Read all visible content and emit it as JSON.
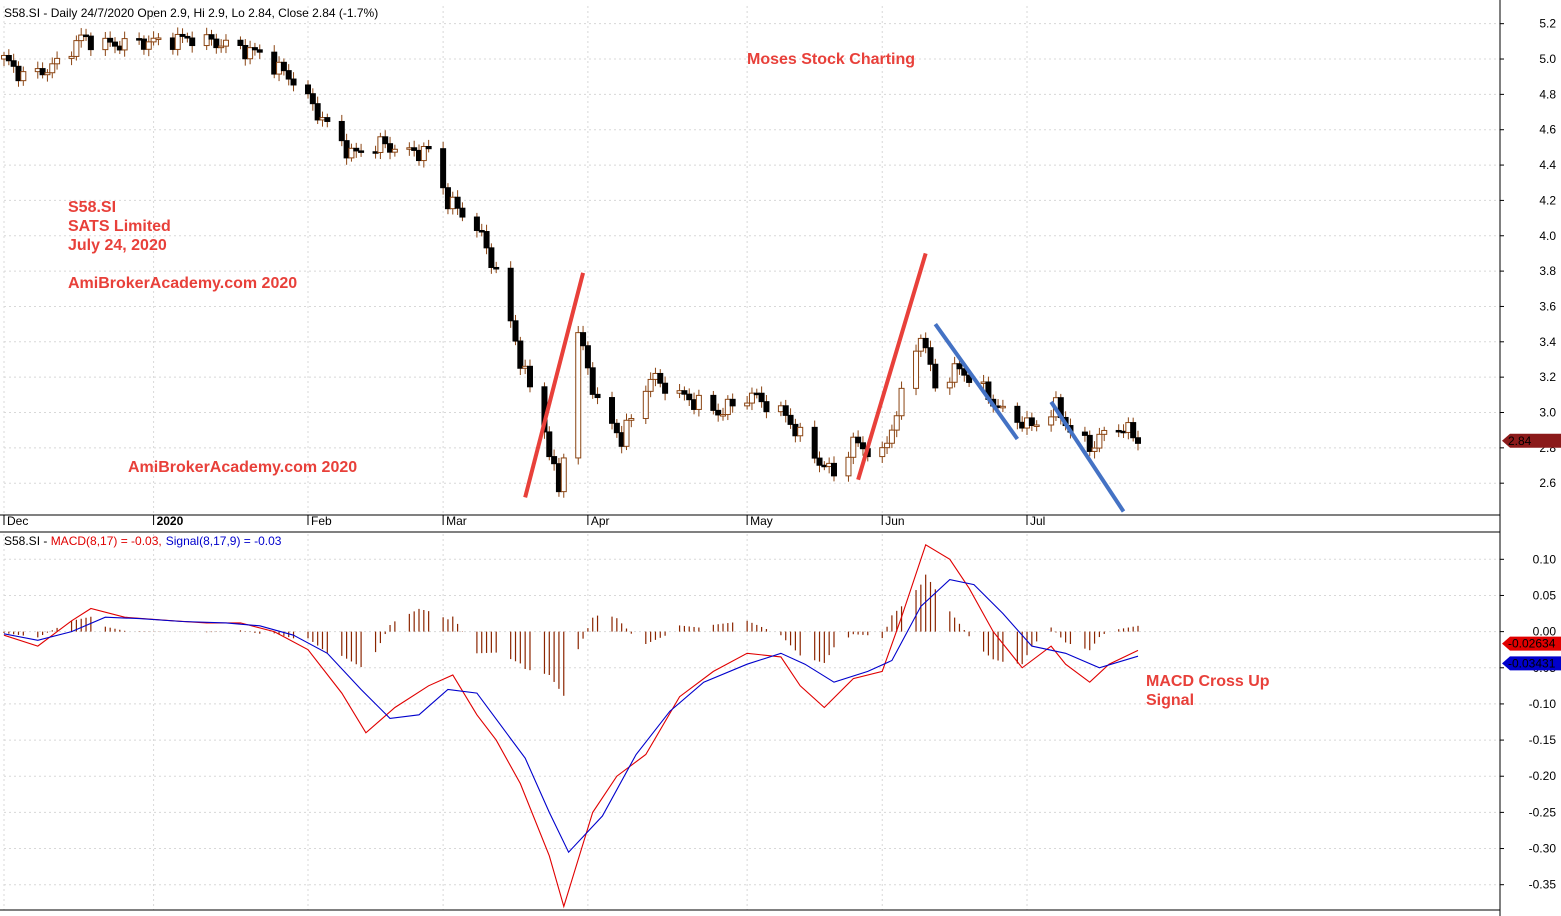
{
  "chart_data": [
    {
      "type": "candlestick",
      "symbol": "S58.SI",
      "header": "S58.SI - Daily 24/7/2020 Open 2.9, Hi 2.9, Lo 2.84, Close 2.84 (-1.7%)",
      "y_ticks": [
        2.6,
        2.8,
        3.0,
        3.2,
        3.4,
        3.6,
        3.8,
        4.0,
        4.2,
        4.4,
        4.6,
        4.8,
        5.0,
        5.2
      ],
      "ylim": [
        2.42,
        5.3
      ],
      "month_labels": [
        {
          "label": "Dec",
          "date": "2019-12-02"
        },
        {
          "label": "2020",
          "date": "2020-01-02"
        },
        {
          "label": "Feb",
          "date": "2020-02-03"
        },
        {
          "label": "Mar",
          "date": "2020-03-02"
        },
        {
          "label": "Apr",
          "date": "2020-04-01"
        },
        {
          "label": "May",
          "date": "2020-05-04"
        },
        {
          "label": "Jun",
          "date": "2020-06-01"
        },
        {
          "label": "Jul",
          "date": "2020-07-01"
        }
      ],
      "date_range": [
        "2019-12-02",
        "2020-07-24"
      ],
      "anchors": [
        {
          "date": "2019-12-02",
          "price": 5.0
        },
        {
          "date": "2019-12-06",
          "price": 4.9
        },
        {
          "date": "2019-12-12",
          "price": 4.95
        },
        {
          "date": "2019-12-18",
          "price": 5.12
        },
        {
          "date": "2019-12-24",
          "price": 5.08
        },
        {
          "date": "2020-01-03",
          "price": 5.1
        },
        {
          "date": "2020-01-10",
          "price": 5.12
        },
        {
          "date": "2020-01-17",
          "price": 5.08
        },
        {
          "date": "2020-01-24",
          "price": 5.03
        },
        {
          "date": "2020-01-31",
          "price": 4.88
        },
        {
          "date": "2020-02-06",
          "price": 4.66
        },
        {
          "date": "2020-02-12",
          "price": 4.46
        },
        {
          "date": "2020-02-18",
          "price": 4.52
        },
        {
          "date": "2020-02-24",
          "price": 4.47
        },
        {
          "date": "2020-02-28",
          "price": 4.48
        },
        {
          "date": "2020-03-03",
          "price": 4.2
        },
        {
          "date": "2020-03-09",
          "price": 4.05
        },
        {
          "date": "2020-03-13",
          "price": 3.8
        },
        {
          "date": "2020-03-18",
          "price": 3.3
        },
        {
          "date": "2020-03-23",
          "price": 2.9
        },
        {
          "date": "2020-03-26",
          "price": 2.55
        },
        {
          "date": "2020-03-30",
          "price": 3.45
        },
        {
          "date": "2020-04-03",
          "price": 3.05
        },
        {
          "date": "2020-04-08",
          "price": 2.85
        },
        {
          "date": "2020-04-14",
          "price": 3.2
        },
        {
          "date": "2020-04-20",
          "price": 3.1
        },
        {
          "date": "2020-04-28",
          "price": 3.0
        },
        {
          "date": "2020-05-05",
          "price": 3.1
        },
        {
          "date": "2020-05-12",
          "price": 2.98
        },
        {
          "date": "2020-05-18",
          "price": 2.75
        },
        {
          "date": "2020-05-22",
          "price": 2.65
        },
        {
          "date": "2020-05-26",
          "price": 2.83
        },
        {
          "date": "2020-06-01",
          "price": 2.75
        },
        {
          "date": "2020-06-04",
          "price": 3.0
        },
        {
          "date": "2020-06-09",
          "price": 3.45
        },
        {
          "date": "2020-06-12",
          "price": 3.15
        },
        {
          "date": "2020-06-17",
          "price": 3.25
        },
        {
          "date": "2020-06-22",
          "price": 3.12
        },
        {
          "date": "2020-06-26",
          "price": 3.0
        },
        {
          "date": "2020-07-02",
          "price": 2.92
        },
        {
          "date": "2020-07-07",
          "price": 3.03
        },
        {
          "date": "2020-07-10",
          "price": 2.9
        },
        {
          "date": "2020-07-14",
          "price": 2.8
        },
        {
          "date": "2020-07-17",
          "price": 2.88
        },
        {
          "date": "2020-07-21",
          "price": 2.92
        },
        {
          "date": "2020-07-24",
          "price": 2.84
        }
      ],
      "last_close_badge": "2.84",
      "trendlines": [
        {
          "color": "#e8403a",
          "from": {
            "date": "2020-03-19",
            "price": 2.52
          },
          "to": {
            "date": "2020-03-31",
            "price": 3.79
          }
        },
        {
          "color": "#e8403a",
          "from": {
            "date": "2020-05-27",
            "price": 2.62
          },
          "to": {
            "date": "2020-06-10",
            "price": 3.9
          }
        },
        {
          "color": "#4472c4",
          "from": {
            "date": "2020-06-12",
            "price": 3.5
          },
          "to": {
            "date": "2020-06-29",
            "price": 2.85
          }
        },
        {
          "color": "#4472c4",
          "from": {
            "date": "2020-07-06",
            "price": 3.06
          },
          "to": {
            "date": "2020-07-21",
            "price": 2.44
          }
        }
      ],
      "annotations": [
        {
          "text": "Moses Stock Charting",
          "color": "#e8403a"
        },
        {
          "text": "S58.SI",
          "color": "#e8403a"
        },
        {
          "text": "SATS Limited",
          "color": "#e8403a"
        },
        {
          "text": "July 24, 2020",
          "color": "#e8403a"
        },
        {
          "text": "AmiBrokerAcademy.com  2020",
          "color": "#e8403a"
        },
        {
          "text": "AmiBrokerAcademy.com  2020",
          "color": "#e8403a"
        }
      ],
      "colors": {
        "up": "#ffffff",
        "down": "#000000",
        "wick": "#8b4513",
        "up_border": "#8b4513"
      }
    },
    {
      "type": "line",
      "header_prefix": "S58.SI - ",
      "macd_label": "MACD(8,17) = -0.03,",
      "signal_label": "Signal(8,17,9) = -0.03",
      "y_ticks": [
        -0.35,
        -0.3,
        -0.25,
        -0.2,
        -0.15,
        -0.1,
        -0.05,
        0.0,
        0.05,
        0.1
      ],
      "y_tick_labels": [
        "-0.35",
        "-0.30",
        "-0.25",
        "-0.20",
        "-0.15",
        "-0.10",
        "-0.05",
        "0.00",
        "0.05",
        "0.10"
      ],
      "ylim": [
        -0.385,
        0.135
      ],
      "series": [
        {
          "name": "MACD(8,17)",
          "color": "#e00000",
          "points": [
            {
              "date": "2019-12-02",
              "value": -0.005
            },
            {
              "date": "2019-12-09",
              "value": -0.02
            },
            {
              "date": "2019-12-16",
              "value": 0.015
            },
            {
              "date": "2019-12-20",
              "value": 0.032
            },
            {
              "date": "2019-12-27",
              "value": 0.02
            },
            {
              "date": "2020-01-06",
              "value": 0.015
            },
            {
              "date": "2020-01-13",
              "value": 0.012
            },
            {
              "date": "2020-01-20",
              "value": 0.012
            },
            {
              "date": "2020-01-27",
              "value": 0.0
            },
            {
              "date": "2020-02-03",
              "value": -0.025
            },
            {
              "date": "2020-02-10",
              "value": -0.085
            },
            {
              "date": "2020-02-15",
              "value": -0.14
            },
            {
              "date": "2020-02-21",
              "value": -0.105
            },
            {
              "date": "2020-02-28",
              "value": -0.075
            },
            {
              "date": "2020-03-04",
              "value": -0.06
            },
            {
              "date": "2020-03-09",
              "value": -0.115
            },
            {
              "date": "2020-03-13",
              "value": -0.15
            },
            {
              "date": "2020-03-18",
              "value": -0.21
            },
            {
              "date": "2020-03-24",
              "value": -0.31
            },
            {
              "date": "2020-03-27",
              "value": -0.38
            },
            {
              "date": "2020-04-02",
              "value": -0.25
            },
            {
              "date": "2020-04-07",
              "value": -0.2
            },
            {
              "date": "2020-04-13",
              "value": -0.17
            },
            {
              "date": "2020-04-20",
              "value": -0.09
            },
            {
              "date": "2020-04-27",
              "value": -0.055
            },
            {
              "date": "2020-05-04",
              "value": -0.03
            },
            {
              "date": "2020-05-11",
              "value": -0.035
            },
            {
              "date": "2020-05-15",
              "value": -0.075
            },
            {
              "date": "2020-05-20",
              "value": -0.105
            },
            {
              "date": "2020-05-26",
              "value": -0.065
            },
            {
              "date": "2020-06-01",
              "value": -0.055
            },
            {
              "date": "2020-06-05",
              "value": 0.02
            },
            {
              "date": "2020-06-10",
              "value": 0.12
            },
            {
              "date": "2020-06-15",
              "value": 0.1
            },
            {
              "date": "2020-06-19",
              "value": 0.06
            },
            {
              "date": "2020-06-24",
              "value": 0.0
            },
            {
              "date": "2020-06-30",
              "value": -0.05
            },
            {
              "date": "2020-07-06",
              "value": -0.02
            },
            {
              "date": "2020-07-09",
              "value": -0.045
            },
            {
              "date": "2020-07-14",
              "value": -0.07
            },
            {
              "date": "2020-07-18",
              "value": -0.045
            },
            {
              "date": "2020-07-24",
              "value": -0.026
            }
          ]
        },
        {
          "name": "Signal(8,17,9)",
          "color": "#0000cc",
          "points": [
            {
              "date": "2019-12-02",
              "value": -0.003
            },
            {
              "date": "2019-12-09",
              "value": -0.012
            },
            {
              "date": "2019-12-16",
              "value": 0.0
            },
            {
              "date": "2019-12-23",
              "value": 0.02
            },
            {
              "date": "2019-12-30",
              "value": 0.018
            },
            {
              "date": "2020-01-08",
              "value": 0.014
            },
            {
              "date": "2020-01-17",
              "value": 0.012
            },
            {
              "date": "2020-01-24",
              "value": 0.008
            },
            {
              "date": "2020-01-31",
              "value": -0.005
            },
            {
              "date": "2020-02-07",
              "value": -0.03
            },
            {
              "date": "2020-02-14",
              "value": -0.08
            },
            {
              "date": "2020-02-20",
              "value": -0.12
            },
            {
              "date": "2020-02-26",
              "value": -0.115
            },
            {
              "date": "2020-03-03",
              "value": -0.08
            },
            {
              "date": "2020-03-09",
              "value": -0.085
            },
            {
              "date": "2020-03-14",
              "value": -0.13
            },
            {
              "date": "2020-03-19",
              "value": -0.175
            },
            {
              "date": "2020-03-24",
              "value": -0.25
            },
            {
              "date": "2020-03-28",
              "value": -0.305
            },
            {
              "date": "2020-04-04",
              "value": -0.255
            },
            {
              "date": "2020-04-11",
              "value": -0.17
            },
            {
              "date": "2020-04-18",
              "value": -0.11
            },
            {
              "date": "2020-04-25",
              "value": -0.07
            },
            {
              "date": "2020-05-04",
              "value": -0.045
            },
            {
              "date": "2020-05-11",
              "value": -0.03
            },
            {
              "date": "2020-05-16",
              "value": -0.045
            },
            {
              "date": "2020-05-22",
              "value": -0.07
            },
            {
              "date": "2020-05-29",
              "value": -0.055
            },
            {
              "date": "2020-06-03",
              "value": -0.04
            },
            {
              "date": "2020-06-09",
              "value": 0.035
            },
            {
              "date": "2020-06-15",
              "value": 0.072
            },
            {
              "date": "2020-06-20",
              "value": 0.065
            },
            {
              "date": "2020-06-26",
              "value": 0.025
            },
            {
              "date": "2020-07-02",
              "value": -0.02
            },
            {
              "date": "2020-07-09",
              "value": -0.03
            },
            {
              "date": "2020-07-16",
              "value": -0.05
            },
            {
              "date": "2020-07-24",
              "value": -0.034
            }
          ]
        }
      ],
      "histogram_color": "#8b2500",
      "badges": [
        {
          "text": "-0.02634",
          "value": -0.02634,
          "color": "#e00000"
        },
        {
          "text": "-0.03431",
          "value": -0.03431,
          "color": "#0000cc"
        }
      ],
      "annotations": [
        {
          "text": "MACD Cross Up",
          "color": "#e8403a"
        },
        {
          "text": "Signal",
          "color": "#e8403a"
        }
      ]
    }
  ]
}
